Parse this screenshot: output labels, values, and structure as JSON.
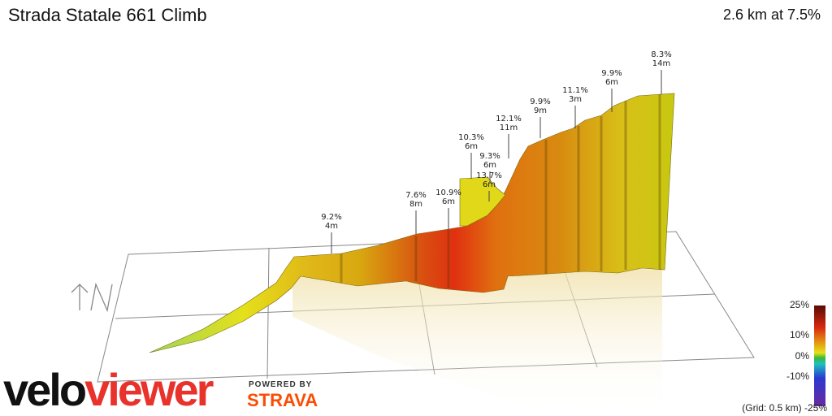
{
  "header": {
    "title": "Strada Statale 661 Climb",
    "summary": "2.6 km at 7.5%"
  },
  "north_label": "↑N",
  "annotations": [
    {
      "grade": "9.2%",
      "length": "4m"
    },
    {
      "grade": "7.6%",
      "length": "8m"
    },
    {
      "grade": "10.9%",
      "length": "6m"
    },
    {
      "grade": "10.3%",
      "length": "6m"
    },
    {
      "grade": "9.3%",
      "length": "6m"
    },
    {
      "grade": "13.7%",
      "length": "6m"
    },
    {
      "grade": "12.1%",
      "length": "11m"
    },
    {
      "grade": "9.9%",
      "length": "9m"
    },
    {
      "grade": "11.1%",
      "length": "3m"
    },
    {
      "grade": "9.9%",
      "length": "6m"
    },
    {
      "grade": "8.3%",
      "length": "14m"
    }
  ],
  "legend": {
    "labels": [
      "25%",
      "10%",
      "0%",
      "-10%",
      "-25%"
    ],
    "grid_note": "(Grid: 0.5 km)"
  },
  "colors": {
    "flat": "#6fc23a",
    "moderate": "#e5e01a",
    "steep": "#e07a10",
    "very_steep": "#d82a10",
    "extreme": "#5a1a05",
    "descent": "#3a2ab0",
    "logo_accent": "#e8322b",
    "strava": "#fc4c02"
  },
  "branding": {
    "logo_part1": "velo",
    "logo_part2": "viewer",
    "powered_by": "POWERED BY",
    "strava": "STRAVA"
  }
}
